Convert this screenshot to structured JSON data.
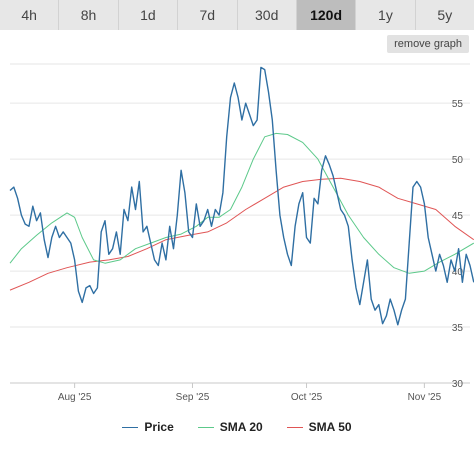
{
  "tabs": {
    "items": [
      {
        "label": "4h"
      },
      {
        "label": "8h"
      },
      {
        "label": "1d"
      },
      {
        "label": "7d"
      },
      {
        "label": "30d"
      },
      {
        "label": "120d"
      },
      {
        "label": "1y"
      },
      {
        "label": "5y"
      }
    ],
    "active": "120d"
  },
  "remove_graph_label": "remove graph",
  "chart_data": {
    "type": "line",
    "xlabel": "",
    "ylabel": "",
    "ylim": [
      30,
      58.5
    ],
    "yticks": [
      30,
      35,
      40,
      45,
      50,
      55
    ],
    "xlim": [
      "2025-07-15",
      "2025-11-13"
    ],
    "xticks": [
      {
        "date": "2025-08-01",
        "label": "Aug '25"
      },
      {
        "date": "2025-09-01",
        "label": "Sep '25"
      },
      {
        "date": "2025-10-01",
        "label": "Oct '25"
      },
      {
        "date": "2025-11-01",
        "label": "Nov '25"
      }
    ],
    "grid": true,
    "legend": "bottom",
    "series": [
      {
        "name": "Price",
        "color": "#2f6fa3",
        "points": [
          [
            "2025-07-15",
            47.2
          ],
          [
            "2025-07-16",
            47.5
          ],
          [
            "2025-07-17",
            46.5
          ],
          [
            "2025-07-18",
            45.0
          ],
          [
            "2025-07-19",
            44.2
          ],
          [
            "2025-07-20",
            44.0
          ],
          [
            "2025-07-21",
            45.8
          ],
          [
            "2025-07-22",
            44.5
          ],
          [
            "2025-07-23",
            45.2
          ],
          [
            "2025-07-24",
            42.8
          ],
          [
            "2025-07-25",
            41.2
          ],
          [
            "2025-07-26",
            43.0
          ],
          [
            "2025-07-27",
            44.0
          ],
          [
            "2025-07-28",
            43.0
          ],
          [
            "2025-07-29",
            43.5
          ],
          [
            "2025-07-30",
            43.0
          ],
          [
            "2025-07-31",
            42.5
          ],
          [
            "2025-08-01",
            41.0
          ],
          [
            "2025-08-02",
            38.2
          ],
          [
            "2025-08-03",
            37.2
          ],
          [
            "2025-08-04",
            38.5
          ],
          [
            "2025-08-05",
            38.7
          ],
          [
            "2025-08-06",
            38.0
          ],
          [
            "2025-08-07",
            38.5
          ],
          [
            "2025-08-08",
            43.5
          ],
          [
            "2025-08-09",
            44.5
          ],
          [
            "2025-08-10",
            41.5
          ],
          [
            "2025-08-11",
            42.0
          ],
          [
            "2025-08-12",
            43.5
          ],
          [
            "2025-08-13",
            41.5
          ],
          [
            "2025-08-14",
            45.5
          ],
          [
            "2025-08-15",
            44.5
          ],
          [
            "2025-08-16",
            47.5
          ],
          [
            "2025-08-17",
            45.5
          ],
          [
            "2025-08-18",
            48.0
          ],
          [
            "2025-08-19",
            43.5
          ],
          [
            "2025-08-20",
            44.0
          ],
          [
            "2025-08-21",
            42.5
          ],
          [
            "2025-08-22",
            41.0
          ],
          [
            "2025-08-23",
            40.5
          ],
          [
            "2025-08-24",
            42.5
          ],
          [
            "2025-08-25",
            41.0
          ],
          [
            "2025-08-26",
            44.0
          ],
          [
            "2025-08-27",
            42.0
          ],
          [
            "2025-08-28",
            45.0
          ],
          [
            "2025-08-29",
            49.0
          ],
          [
            "2025-08-30",
            47.0
          ],
          [
            "2025-08-31",
            43.5
          ],
          [
            "2025-09-01",
            43.0
          ],
          [
            "2025-09-02",
            46.0
          ],
          [
            "2025-09-03",
            44.0
          ],
          [
            "2025-09-04",
            44.5
          ],
          [
            "2025-09-05",
            45.5
          ],
          [
            "2025-09-06",
            44.0
          ],
          [
            "2025-09-07",
            45.5
          ],
          [
            "2025-09-08",
            45.0
          ],
          [
            "2025-09-09",
            47.0
          ],
          [
            "2025-09-10",
            52.0
          ],
          [
            "2025-09-11",
            55.5
          ],
          [
            "2025-09-12",
            56.8
          ],
          [
            "2025-09-13",
            55.5
          ],
          [
            "2025-09-14",
            53.5
          ],
          [
            "2025-09-15",
            55.0
          ],
          [
            "2025-09-16",
            54.0
          ],
          [
            "2025-09-17",
            53.0
          ],
          [
            "2025-09-18",
            53.5
          ],
          [
            "2025-09-19",
            58.2
          ],
          [
            "2025-09-20",
            58.0
          ],
          [
            "2025-09-21",
            56.0
          ],
          [
            "2025-09-22",
            53.5
          ],
          [
            "2025-09-23",
            49.0
          ],
          [
            "2025-09-24",
            45.0
          ],
          [
            "2025-09-25",
            43.0
          ],
          [
            "2025-09-26",
            41.5
          ],
          [
            "2025-09-27",
            40.5
          ],
          [
            "2025-09-28",
            44.0
          ],
          [
            "2025-09-29",
            46.0
          ],
          [
            "2025-09-30",
            47.0
          ],
          [
            "2025-10-01",
            43.0
          ],
          [
            "2025-10-02",
            42.5
          ],
          [
            "2025-10-03",
            46.5
          ],
          [
            "2025-10-04",
            46.0
          ],
          [
            "2025-10-05",
            49.0
          ],
          [
            "2025-10-06",
            50.3
          ],
          [
            "2025-10-07",
            49.5
          ],
          [
            "2025-10-08",
            48.5
          ],
          [
            "2025-10-09",
            47.0
          ],
          [
            "2025-10-10",
            45.5
          ],
          [
            "2025-10-11",
            45.0
          ],
          [
            "2025-10-12",
            44.0
          ],
          [
            "2025-10-13",
            41.0
          ],
          [
            "2025-10-14",
            38.5
          ],
          [
            "2025-10-15",
            37.0
          ],
          [
            "2025-10-16",
            39.0
          ],
          [
            "2025-10-17",
            41.0
          ],
          [
            "2025-10-18",
            37.5
          ],
          [
            "2025-10-19",
            36.5
          ],
          [
            "2025-10-20",
            37.0
          ],
          [
            "2025-10-21",
            35.3
          ],
          [
            "2025-10-22",
            36.0
          ],
          [
            "2025-10-23",
            37.5
          ],
          [
            "2025-10-24",
            36.5
          ],
          [
            "2025-10-25",
            35.2
          ],
          [
            "2025-10-26",
            36.5
          ],
          [
            "2025-10-27",
            37.5
          ],
          [
            "2025-10-28",
            42.5
          ],
          [
            "2025-10-29",
            47.5
          ],
          [
            "2025-10-30",
            48.0
          ],
          [
            "2025-10-31",
            47.5
          ],
          [
            "2025-11-01",
            46.0
          ],
          [
            "2025-11-02",
            43.0
          ],
          [
            "2025-11-03",
            41.5
          ],
          [
            "2025-11-04",
            40.0
          ],
          [
            "2025-11-05",
            41.5
          ],
          [
            "2025-11-06",
            40.5
          ],
          [
            "2025-11-07",
            39.0
          ],
          [
            "2025-11-08",
            41.0
          ],
          [
            "2025-11-09",
            40.0
          ],
          [
            "2025-11-10",
            42.0
          ],
          [
            "2025-11-11",
            39.0
          ],
          [
            "2025-11-12",
            41.5
          ],
          [
            "2025-11-13",
            40.5
          ],
          [
            "2025-11-14",
            39.0
          ]
        ]
      },
      {
        "name": "SMA 20",
        "color": "#5cc98a",
        "points": [
          [
            "2025-07-15",
            40.7
          ],
          [
            "2025-07-18",
            42.0
          ],
          [
            "2025-07-22",
            43.2
          ],
          [
            "2025-07-26",
            44.3
          ],
          [
            "2025-07-30",
            45.2
          ],
          [
            "2025-08-01",
            44.8
          ],
          [
            "2025-08-03",
            43.0
          ],
          [
            "2025-08-06",
            41.0
          ],
          [
            "2025-08-09",
            40.7
          ],
          [
            "2025-08-13",
            41.0
          ],
          [
            "2025-08-17",
            42.0
          ],
          [
            "2025-08-21",
            42.5
          ],
          [
            "2025-08-25",
            43.0
          ],
          [
            "2025-08-29",
            43.3
          ],
          [
            "2025-09-02",
            44.0
          ],
          [
            "2025-09-05",
            44.8
          ],
          [
            "2025-09-08",
            44.8
          ],
          [
            "2025-09-11",
            45.5
          ],
          [
            "2025-09-14",
            47.5
          ],
          [
            "2025-09-17",
            50.0
          ],
          [
            "2025-09-20",
            52.0
          ],
          [
            "2025-09-23",
            52.3
          ],
          [
            "2025-09-26",
            52.2
          ],
          [
            "2025-09-30",
            51.5
          ],
          [
            "2025-10-04",
            50.0
          ],
          [
            "2025-10-08",
            47.5
          ],
          [
            "2025-10-12",
            45.0
          ],
          [
            "2025-10-16",
            43.0
          ],
          [
            "2025-10-20",
            41.5
          ],
          [
            "2025-10-24",
            40.3
          ],
          [
            "2025-10-28",
            39.8
          ],
          [
            "2025-11-01",
            40.0
          ],
          [
            "2025-11-05",
            40.8
          ],
          [
            "2025-11-09",
            41.5
          ],
          [
            "2025-11-14",
            42.5
          ]
        ]
      },
      {
        "name": "SMA 50",
        "color": "#e05555",
        "points": [
          [
            "2025-07-15",
            38.3
          ],
          [
            "2025-07-20",
            39.0
          ],
          [
            "2025-07-25",
            39.8
          ],
          [
            "2025-07-30",
            40.3
          ],
          [
            "2025-08-05",
            40.8
          ],
          [
            "2025-08-10",
            41.0
          ],
          [
            "2025-08-15",
            41.3
          ],
          [
            "2025-08-20",
            42.0
          ],
          [
            "2025-08-25",
            42.8
          ],
          [
            "2025-08-31",
            43.2
          ],
          [
            "2025-09-05",
            43.5
          ],
          [
            "2025-09-10",
            44.3
          ],
          [
            "2025-09-15",
            45.5
          ],
          [
            "2025-09-20",
            46.5
          ],
          [
            "2025-09-25",
            47.5
          ],
          [
            "2025-09-30",
            48.0
          ],
          [
            "2025-10-05",
            48.2
          ],
          [
            "2025-10-10",
            48.3
          ],
          [
            "2025-10-15",
            48.0
          ],
          [
            "2025-10-20",
            47.5
          ],
          [
            "2025-10-25",
            46.5
          ],
          [
            "2025-10-30",
            46.0
          ],
          [
            "2025-11-04",
            45.5
          ],
          [
            "2025-11-09",
            44.0
          ],
          [
            "2025-11-14",
            42.8
          ]
        ]
      }
    ]
  }
}
